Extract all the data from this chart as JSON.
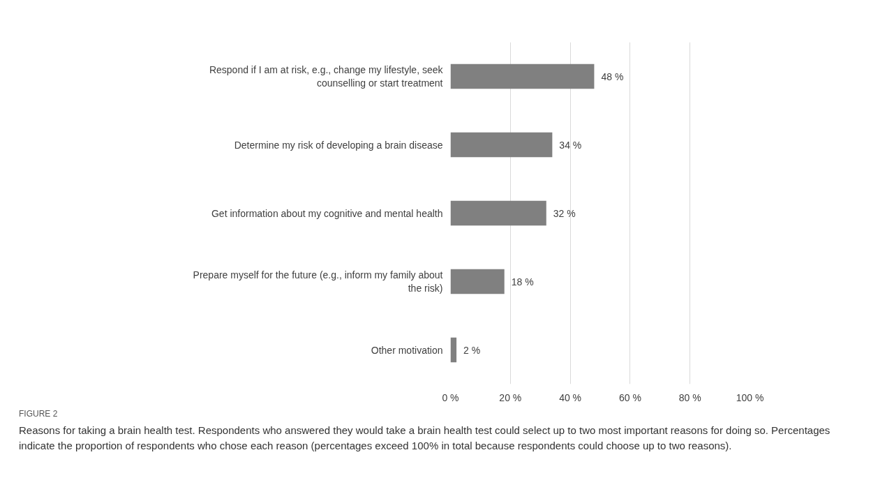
{
  "chart_data": {
    "type": "bar",
    "orientation": "horizontal",
    "categories": [
      "Respond if I am at risk, e.g., change my lifestyle, seek counselling or start treatment",
      "Determine my risk of developing a brain disease",
      "Get information about my cognitive and mental health",
      "Prepare myself for the future (e.g., inform my family about the risk)",
      "Other motivation"
    ],
    "values": [
      48,
      34,
      32,
      18,
      2
    ],
    "value_labels": [
      "48 %",
      "34 %",
      "32 %",
      "18 %",
      "2 %"
    ],
    "color": "#808080",
    "xlim": [
      0,
      100
    ],
    "xticks": [
      {
        "value": 0,
        "label": "0 %"
      },
      {
        "value": 20,
        "label": "20 %"
      },
      {
        "value": 40,
        "label": "40 %"
      },
      {
        "value": 60,
        "label": "60 %"
      },
      {
        "value": 80,
        "label": "80 %"
      },
      {
        "value": 100,
        "label": "100 %"
      }
    ],
    "grid": "x",
    "annotations": [
      "FIGURE 2",
      "Reasons for taking a brain health test. Respondents who answered they would take a brain health test could select up to two most important reasons for doing so. Percentages indicate the proportion of respondents who chose each reason (percentages exceed 100% in total because respondents could choose up to two reasons)."
    ]
  }
}
